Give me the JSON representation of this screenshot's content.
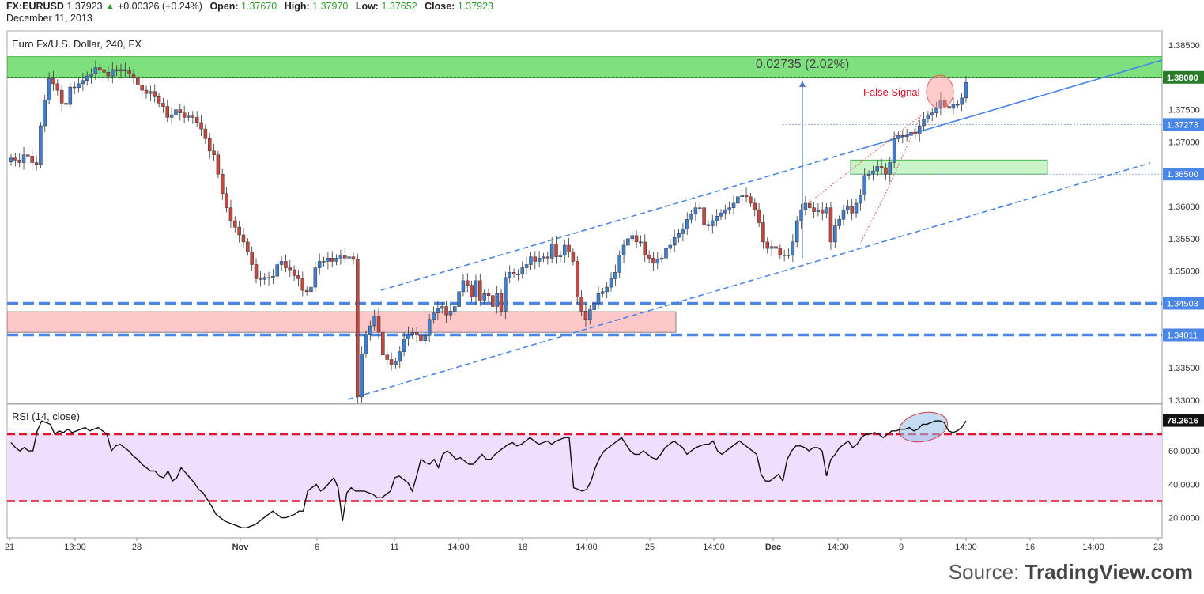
{
  "header": {
    "symbol": "FX:EURUSD",
    "last": "1.37923",
    "change": "+0.00326 (+0.24%)",
    "open_label": "Open:",
    "open": "1.37670",
    "high_label": "High:",
    "high": "1.37970",
    "low_label": "Low:",
    "low": "1.37652",
    "close_label": "Close:",
    "close": "1.37923",
    "date": "December 11, 2013"
  },
  "source": {
    "prefix": "Source: ",
    "brand": "TradingView.com"
  },
  "colors": {
    "up": "#3f7fd1",
    "down": "#c8463e",
    "trend": "#4a86e8",
    "resistance_zone": "#7fe07f",
    "support_zone": "#ffc8c8",
    "rsi_band": "#f0deff",
    "rsi_level": "#e0142a"
  },
  "chart_data": [
    {
      "type": "candlestick",
      "title": "Euro Fx/U.S. Dollar, 240, FX",
      "y_ticks": [
        1.33,
        1.335,
        1.34,
        1.345,
        1.35,
        1.355,
        1.36,
        1.365,
        1.37,
        1.375,
        1.385
      ],
      "ylim": [
        1.3295,
        1.3872
      ],
      "x_ticks": [
        "21",
        "13:00",
        "28",
        "Nov",
        "6",
        "11",
        "14:00",
        "18",
        "14:00",
        "25",
        "14:00",
        "Dec",
        "14:00",
        "9",
        "14:00",
        "16",
        "14:00",
        "23"
      ],
      "price_labels": [
        "1.38000",
        "1.37273",
        "1.36500",
        "1.34503",
        "1.34011"
      ],
      "horizontal_levels": [
        1.38,
        1.3727,
        1.365,
        1.345,
        1.3401
      ],
      "zones": [
        {
          "name": "resistance",
          "from": 1.38,
          "to": 1.3832
        },
        {
          "name": "support",
          "from": 1.3405,
          "to": 1.3437
        },
        {
          "name": "breakout",
          "from": 1.365,
          "to": 1.3672
        }
      ],
      "annotations": [
        "0.02735 (2.02%)",
        "False Signal"
      ],
      "close": [
        1.3675,
        1.3672,
        1.3668,
        1.368,
        1.3678,
        1.3668,
        1.3665,
        1.3725,
        1.3765,
        1.3798,
        1.379,
        1.378,
        1.376,
        1.3758,
        1.3785,
        1.3784,
        1.379,
        1.3795,
        1.3802,
        1.3805,
        1.3815,
        1.3812,
        1.3808,
        1.3802,
        1.3812,
        1.381,
        1.3812,
        1.381,
        1.3805,
        1.38,
        1.3788,
        1.378,
        1.3775,
        1.3778,
        1.377,
        1.376,
        1.3755,
        1.3738,
        1.3742,
        1.375,
        1.3745,
        1.3738,
        1.374,
        1.3738,
        1.373,
        1.372,
        1.3705,
        1.3686,
        1.368,
        1.365,
        1.362,
        1.3598,
        1.3578,
        1.3568,
        1.3556,
        1.3545,
        1.353,
        1.351,
        1.3488,
        1.3487,
        1.349,
        1.3489,
        1.3492,
        1.351,
        1.3515,
        1.3505,
        1.3502,
        1.3493,
        1.3488,
        1.347,
        1.3468,
        1.3475,
        1.3505,
        1.3515,
        1.3515,
        1.352,
        1.3515,
        1.352,
        1.3525,
        1.352,
        1.3522,
        1.3518,
        1.3305,
        1.3372,
        1.3402,
        1.3415,
        1.343,
        1.3405,
        1.337,
        1.3363,
        1.3355,
        1.336,
        1.3375,
        1.3395,
        1.3402,
        1.3405,
        1.3401,
        1.3392,
        1.34,
        1.3425,
        1.3435,
        1.3442,
        1.3445,
        1.3432,
        1.3438,
        1.3445,
        1.3468,
        1.3485,
        1.3478,
        1.346,
        1.3485,
        1.3455,
        1.3465,
        1.3462,
        1.3445,
        1.3465,
        1.3438,
        1.349,
        1.3498,
        1.3495,
        1.3495,
        1.3505,
        1.351,
        1.3522,
        1.3515,
        1.352,
        1.3522,
        1.352,
        1.3542,
        1.3522,
        1.3525,
        1.354,
        1.353,
        1.3515,
        1.346,
        1.3438,
        1.3425,
        1.344,
        1.345,
        1.3465,
        1.3468,
        1.3475,
        1.3488,
        1.3498,
        1.3525,
        1.354,
        1.355,
        1.3555,
        1.3545,
        1.3545,
        1.3525,
        1.352,
        1.3512,
        1.3518,
        1.352,
        1.3535,
        1.354,
        1.3552,
        1.3558,
        1.3565,
        1.358,
        1.3588,
        1.3598,
        1.3598,
        1.3572,
        1.357,
        1.3578,
        1.3585,
        1.359,
        1.3595,
        1.3598,
        1.3605,
        1.3615,
        1.3618,
        1.3615,
        1.3605,
        1.3595,
        1.3575,
        1.3545,
        1.3535,
        1.3538,
        1.3535,
        1.3525,
        1.3525,
        1.3525,
        1.3545,
        1.3578,
        1.3595,
        1.3605,
        1.3598,
        1.3592,
        1.3595,
        1.359,
        1.3598,
        1.3545,
        1.357,
        1.358,
        1.3595,
        1.36,
        1.359,
        1.3605,
        1.3618,
        1.3648,
        1.365,
        1.3655,
        1.3662,
        1.366,
        1.365,
        1.3668,
        1.3705,
        1.371,
        1.3708,
        1.371,
        1.3715,
        1.3712,
        1.3725,
        1.3735,
        1.3742,
        1.3745,
        1.3752,
        1.3765,
        1.3755,
        1.3752,
        1.3758,
        1.3758,
        1.3768,
        1.3792
      ],
      "trendlines": [
        "upper channel",
        "lower channel",
        "upper parallel"
      ]
    },
    {
      "type": "line",
      "title": "RSI (14, close)",
      "y_ticks": [
        20,
        40,
        60
      ],
      "ylim": [
        8,
        88
      ],
      "levels": [
        70,
        30
      ],
      "last_value": "78.2616",
      "values": [
        65,
        62,
        60,
        62,
        60,
        60,
        72,
        78,
        77,
        76,
        70,
        72,
        71,
        73,
        71,
        72,
        73,
        74,
        72,
        73,
        74,
        72,
        70,
        60,
        63,
        64,
        62,
        60,
        57,
        55,
        52,
        50,
        48,
        48,
        45,
        44,
        48,
        42,
        44,
        50,
        47,
        44,
        41,
        37,
        35,
        31,
        27,
        22,
        20,
        18,
        17,
        16,
        15,
        14,
        14,
        15,
        16,
        18,
        20,
        22,
        24,
        22,
        20,
        20,
        21,
        22,
        24,
        24,
        36,
        38,
        40,
        36,
        38,
        41,
        44,
        38,
        18,
        35,
        38,
        36,
        36,
        36,
        35,
        34,
        32,
        32,
        34,
        36,
        44,
        45,
        43,
        41,
        36,
        45,
        55,
        53,
        52,
        55,
        50,
        58,
        60,
        58,
        55,
        56,
        54,
        52,
        52,
        55,
        58,
        55,
        55,
        58,
        60,
        62,
        64,
        65,
        63,
        64,
        66,
        68,
        66,
        64,
        65,
        66,
        64,
        66,
        67,
        68,
        68,
        38,
        37,
        36,
        37,
        42,
        50,
        56,
        60,
        62,
        64,
        66,
        68,
        64,
        60,
        58,
        58,
        60,
        58,
        56,
        55,
        58,
        62,
        64,
        66,
        64,
        62,
        58,
        60,
        62,
        63,
        64,
        64,
        66,
        60,
        58,
        60,
        62,
        64,
        66,
        64,
        62,
        60,
        58,
        46,
        42,
        42,
        44,
        46,
        42,
        55,
        60,
        63,
        63,
        62,
        60,
        62,
        62,
        60,
        45,
        55,
        58,
        62,
        64,
        66,
        62,
        64,
        68,
        70,
        70,
        71,
        70,
        68,
        70,
        72,
        72,
        73,
        73,
        74,
        72,
        73,
        76,
        76,
        77,
        78,
        78,
        77,
        72,
        71,
        72,
        74,
        78
      ]
    }
  ]
}
